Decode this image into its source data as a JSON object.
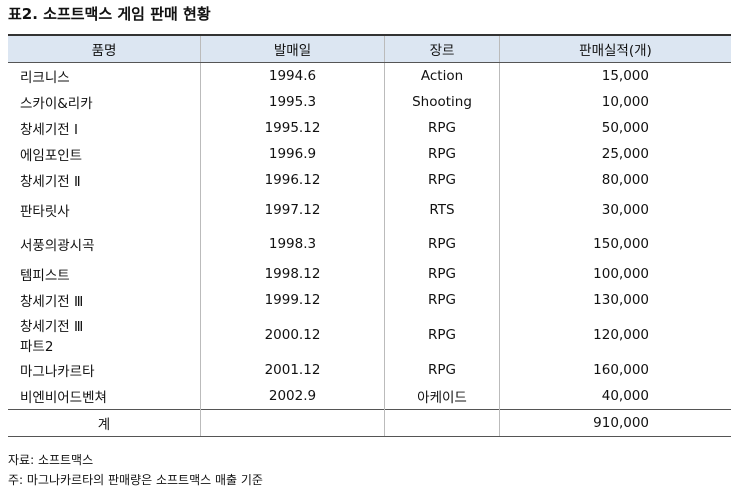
{
  "title": "표2. 소프트맥스 게임 판매 현황",
  "table": {
    "header": [
      "품명",
      "발매일",
      "장르",
      "판매실적(개)"
    ],
    "rows": [
      [
        "리크니스",
        "1994.6",
        "Action",
        "15,000"
      ],
      [
        "스카이&리카",
        "1995.3",
        "Shooting",
        "10,000"
      ],
      [
        "창세기전 Ⅰ",
        "1995.12",
        "RPG",
        "50,000"
      ],
      [
        "에임포인트",
        "1996.9",
        "RPG",
        "25,000"
      ],
      [
        "창세기전 Ⅱ",
        "1996.12",
        "RPG",
        "80,000"
      ],
      [
        "판타릿사",
        "1997.12",
        "RTS",
        "30,000"
      ],
      [
        "서풍의광시곡",
        "1998.3",
        "RPG",
        "150,000"
      ],
      [
        "템피스트",
        "1998.12",
        "RPG",
        "100,000"
      ],
      [
        "창세기전 Ⅲ",
        "1999.12",
        "RPG",
        "130,000"
      ],
      [
        "창세기전 Ⅲ\n파트2",
        "2000.12",
        "RPG",
        "120,000"
      ],
      [
        "마그나카르타",
        "2001.12",
        "RPG",
        "160,000"
      ],
      [
        "비엔비어드벤쳐",
        "2002.9",
        "아케이드",
        "40,000"
      ]
    ],
    "total": {
      "label": "계",
      "value": "910,000"
    }
  },
  "notes": [
    "자료: 소프트맥스",
    "주: 마그나카르타의 판매량은 소프트맥스 매출 기준"
  ]
}
